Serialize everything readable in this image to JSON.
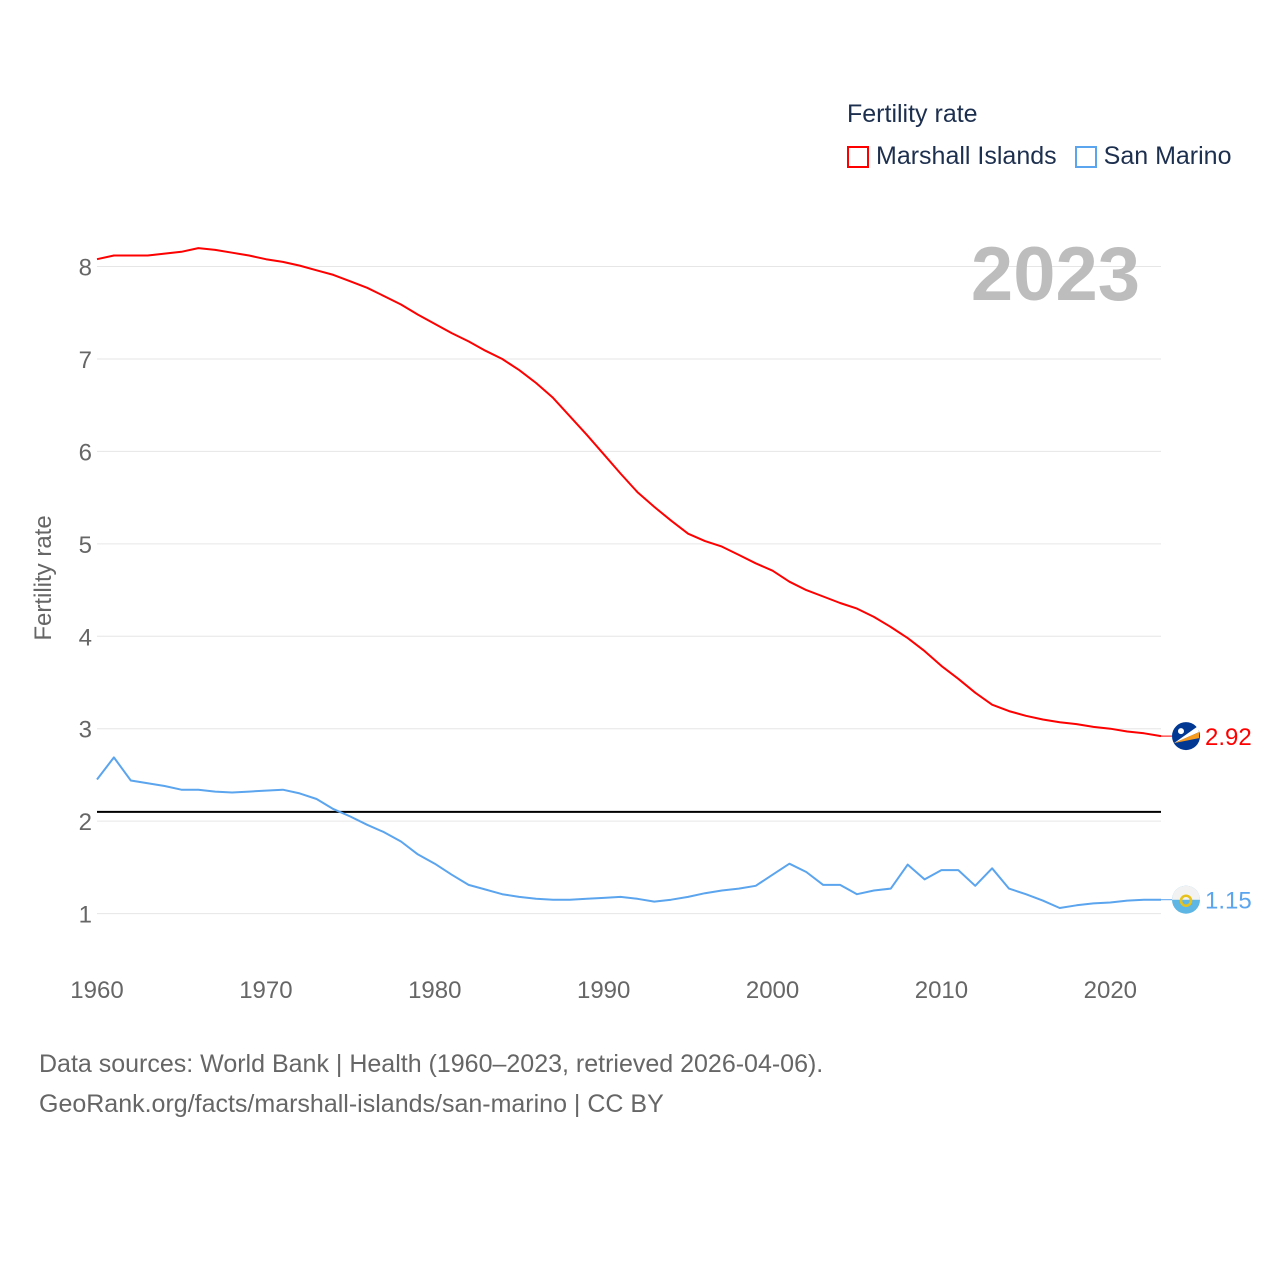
{
  "chart_data": {
    "type": "line",
    "title": "",
    "ylabel": "Fertility rate",
    "xlabel": "",
    "xlim": [
      1960,
      2023
    ],
    "ylim": [
      0,
      9
    ],
    "x_ticks": [
      "1960",
      "1970",
      "1980",
      "1990",
      "2000",
      "2010",
      "2020"
    ],
    "y_ticks": [
      "1",
      "2",
      "3",
      "4",
      "5",
      "6",
      "7",
      "8"
    ],
    "grid": true,
    "legend_title": "Fertility rate",
    "legend_position": "top-right",
    "year_label": "2023",
    "reference_line": {
      "value": 2.1,
      "color": "#000000"
    },
    "x": [
      1960,
      1961,
      1962,
      1963,
      1964,
      1965,
      1966,
      1967,
      1968,
      1969,
      1970,
      1971,
      1972,
      1973,
      1974,
      1975,
      1976,
      1977,
      1978,
      1979,
      1980,
      1981,
      1982,
      1983,
      1984,
      1985,
      1986,
      1987,
      1988,
      1989,
      1990,
      1991,
      1992,
      1993,
      1994,
      1995,
      1996,
      1997,
      1998,
      1999,
      2000,
      2001,
      2002,
      2003,
      2004,
      2005,
      2006,
      2007,
      2008,
      2009,
      2010,
      2011,
      2012,
      2013,
      2014,
      2015,
      2016,
      2017,
      2018,
      2019,
      2020,
      2021,
      2022,
      2023
    ],
    "series": [
      {
        "name": "Marshall Islands",
        "color": "#ff0000",
        "end_label": "2.92",
        "values": [
          8.08,
          8.12,
          8.12,
          8.12,
          8.14,
          8.16,
          8.2,
          8.18,
          8.15,
          8.12,
          8.08,
          8.05,
          8.01,
          7.96,
          7.91,
          7.84,
          7.77,
          7.68,
          7.59,
          7.48,
          7.38,
          7.28,
          7.19,
          7.09,
          7.0,
          6.88,
          6.74,
          6.58,
          6.38,
          6.18,
          5.97,
          5.76,
          5.56,
          5.4,
          5.25,
          5.11,
          5.03,
          4.97,
          4.88,
          4.79,
          4.71,
          4.59,
          4.5,
          4.43,
          4.36,
          4.3,
          4.21,
          4.1,
          3.98,
          3.84,
          3.68,
          3.54,
          3.39,
          3.26,
          3.19,
          3.14,
          3.1,
          3.07,
          3.05,
          3.02,
          3.0,
          2.97,
          2.95,
          2.92
        ]
      },
      {
        "name": "San Marino",
        "color": "#5ba4ee",
        "end_label": "1.15",
        "values": [
          2.45,
          2.69,
          2.44,
          2.41,
          2.38,
          2.34,
          2.34,
          2.32,
          2.31,
          2.32,
          2.33,
          2.34,
          2.3,
          2.24,
          2.13,
          2.05,
          1.96,
          1.88,
          1.78,
          1.64,
          1.54,
          1.42,
          1.31,
          1.26,
          1.21,
          1.18,
          1.16,
          1.15,
          1.15,
          1.16,
          1.17,
          1.18,
          1.16,
          1.13,
          1.15,
          1.18,
          1.22,
          1.25,
          1.27,
          1.3,
          1.42,
          1.54,
          1.45,
          1.31,
          1.31,
          1.21,
          1.25,
          1.27,
          1.53,
          1.37,
          1.47,
          1.47,
          1.3,
          1.49,
          1.27,
          1.21,
          1.14,
          1.06,
          1.09,
          1.11,
          1.12,
          1.14,
          1.15,
          1.15
        ]
      }
    ]
  },
  "source": {
    "line1": "Data sources: World Bank | Health (1960–2023, retrieved 2026-04-06).",
    "line2": "GeoRank.org/facts/marshall-islands/san-marino | CC BY"
  }
}
